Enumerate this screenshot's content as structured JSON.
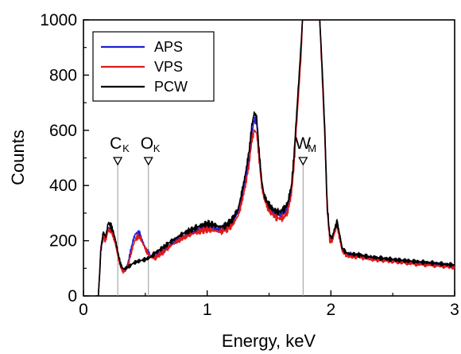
{
  "chart_data": {
    "type": "line",
    "xlabel": "Energy, keV",
    "ylabel": "Counts",
    "xlim": [
      0,
      3
    ],
    "ylim": [
      0,
      1000
    ],
    "xticks": [
      0,
      1,
      2,
      3
    ],
    "yticks": [
      0,
      200,
      400,
      600,
      800,
      1000
    ],
    "legend_position": "top-left",
    "series": [
      {
        "name": "APS",
        "color": "#1f1fd6",
        "x": [
          0.1,
          0.12,
          0.13,
          0.14,
          0.16,
          0.18,
          0.2,
          0.22,
          0.24,
          0.26,
          0.28,
          0.3,
          0.32,
          0.34,
          0.36,
          0.38,
          0.4,
          0.42,
          0.44,
          0.46,
          0.48,
          0.5,
          0.52,
          0.54,
          0.56,
          0.58,
          0.6,
          0.65,
          0.7,
          0.75,
          0.8,
          0.85,
          0.9,
          0.95,
          1.0,
          1.05,
          1.1,
          1.15,
          1.2,
          1.25,
          1.28,
          1.31,
          1.34,
          1.36,
          1.38,
          1.4,
          1.42,
          1.44,
          1.46,
          1.48,
          1.5,
          1.53,
          1.56,
          1.59,
          1.62,
          1.65,
          1.68,
          1.7,
          1.72,
          1.74,
          1.76,
          1.77,
          1.78,
          1.8,
          1.82,
          1.84,
          1.85,
          1.87,
          1.89,
          1.91,
          1.93,
          1.95,
          1.97,
          1.99,
          2.01,
          2.03,
          2.05,
          2.07,
          2.09,
          2.12,
          2.15,
          2.2,
          2.25,
          2.3,
          2.35,
          2.4,
          2.5,
          2.6,
          2.7,
          2.8,
          2.9,
          3.0
        ],
        "y": [
          0,
          0,
          80,
          175,
          225,
          205,
          250,
          240,
          225,
          190,
          145,
          110,
          92,
          95,
          120,
          160,
          200,
          225,
          230,
          220,
          195,
          175,
          160,
          145,
          140,
          140,
          150,
          165,
          185,
          200,
          215,
          225,
          235,
          245,
          250,
          245,
          240,
          245,
          265,
          305,
          360,
          425,
          500,
          585,
          640,
          625,
          510,
          410,
          360,
          340,
          320,
          305,
          295,
          295,
          300,
          320,
          380,
          480,
          620,
          760,
          900,
          1000,
          1000,
          1000,
          1000,
          1000,
          1000,
          1000,
          1000,
          1000,
          810,
          600,
          320,
          215,
          205,
          240,
          270,
          220,
          170,
          155,
          150,
          148,
          145,
          140,
          137,
          135,
          130,
          125,
          120,
          117,
          113,
          108
        ]
      },
      {
        "name": "VPS",
        "color": "#e01a1a",
        "x": [
          0.1,
          0.12,
          0.13,
          0.14,
          0.16,
          0.18,
          0.2,
          0.22,
          0.24,
          0.26,
          0.28,
          0.3,
          0.32,
          0.34,
          0.36,
          0.38,
          0.4,
          0.42,
          0.44,
          0.46,
          0.48,
          0.5,
          0.52,
          0.54,
          0.56,
          0.58,
          0.6,
          0.65,
          0.7,
          0.75,
          0.8,
          0.85,
          0.9,
          0.95,
          1.0,
          1.05,
          1.1,
          1.15,
          1.2,
          1.25,
          1.28,
          1.31,
          1.34,
          1.36,
          1.38,
          1.4,
          1.42,
          1.44,
          1.46,
          1.48,
          1.5,
          1.53,
          1.56,
          1.59,
          1.62,
          1.65,
          1.68,
          1.7,
          1.72,
          1.74,
          1.76,
          1.77,
          1.78,
          1.8,
          1.82,
          1.84,
          1.85,
          1.87,
          1.89,
          1.91,
          1.93,
          1.95,
          1.97,
          1.99,
          2.01,
          2.03,
          2.05,
          2.07,
          2.09,
          2.12,
          2.15,
          2.2,
          2.25,
          2.3,
          2.35,
          2.4,
          2.5,
          2.6,
          2.7,
          2.8,
          2.9,
          3.0
        ],
        "y": [
          0,
          0,
          75,
          170,
          215,
          200,
          240,
          235,
          220,
          185,
          140,
          105,
          88,
          90,
          110,
          145,
          180,
          205,
          215,
          210,
          190,
          170,
          155,
          142,
          138,
          138,
          145,
          160,
          180,
          195,
          210,
          220,
          228,
          235,
          240,
          238,
          232,
          238,
          255,
          290,
          340,
          400,
          480,
          560,
          600,
          590,
          490,
          400,
          350,
          330,
          310,
          295,
          283,
          280,
          285,
          305,
          365,
          460,
          600,
          740,
          880,
          1000,
          1000,
          1000,
          1000,
          1000,
          1000,
          1000,
          1000,
          1000,
          790,
          580,
          310,
          205,
          195,
          230,
          255,
          210,
          165,
          150,
          145,
          143,
          140,
          135,
          132,
          130,
          125,
          120,
          115,
          112,
          108,
          103
        ]
      },
      {
        "name": "PCW",
        "color": "#000000",
        "x": [
          0.1,
          0.12,
          0.13,
          0.14,
          0.16,
          0.18,
          0.2,
          0.22,
          0.24,
          0.26,
          0.28,
          0.3,
          0.32,
          0.34,
          0.36,
          0.38,
          0.4,
          0.42,
          0.44,
          0.46,
          0.48,
          0.5,
          0.52,
          0.54,
          0.56,
          0.58,
          0.6,
          0.65,
          0.7,
          0.75,
          0.8,
          0.85,
          0.9,
          0.95,
          1.0,
          1.05,
          1.1,
          1.15,
          1.2,
          1.25,
          1.28,
          1.31,
          1.34,
          1.36,
          1.38,
          1.4,
          1.42,
          1.44,
          1.46,
          1.48,
          1.5,
          1.53,
          1.56,
          1.59,
          1.62,
          1.65,
          1.68,
          1.7,
          1.72,
          1.74,
          1.76,
          1.77,
          1.78,
          1.8,
          1.82,
          1.84,
          1.85,
          1.87,
          1.89,
          1.91,
          1.93,
          1.95,
          1.97,
          1.99,
          2.01,
          2.03,
          2.05,
          2.07,
          2.09,
          2.12,
          2.15,
          2.2,
          2.25,
          2.3,
          2.35,
          2.4,
          2.5,
          2.6,
          2.7,
          2.8,
          2.9,
          3.0
        ],
        "y": [
          0,
          0,
          70,
          160,
          230,
          215,
          265,
          255,
          235,
          200,
          155,
          115,
          98,
          100,
          105,
          110,
          118,
          122,
          125,
          128,
          130,
          132,
          136,
          140,
          148,
          155,
          162,
          178,
          195,
          210,
          225,
          235,
          245,
          255,
          262,
          258,
          250,
          255,
          275,
          315,
          375,
          445,
          530,
          615,
          665,
          645,
          525,
          420,
          365,
          345,
          330,
          315,
          305,
          305,
          315,
          335,
          395,
          500,
          640,
          780,
          920,
          1000,
          1000,
          1000,
          1000,
          1000,
          1000,
          1000,
          1000,
          1000,
          820,
          610,
          330,
          220,
          210,
          245,
          265,
          225,
          175,
          158,
          152,
          150,
          147,
          142,
          139,
          137,
          132,
          128,
          124,
          120,
          116,
          112
        ]
      }
    ],
    "annotations": [
      {
        "main": "C",
        "sub": "K",
        "x": 0.277
      },
      {
        "main": "O",
        "sub": "K",
        "x": 0.525
      },
      {
        "main": "W",
        "sub": "M",
        "x": 1.775
      }
    ]
  }
}
